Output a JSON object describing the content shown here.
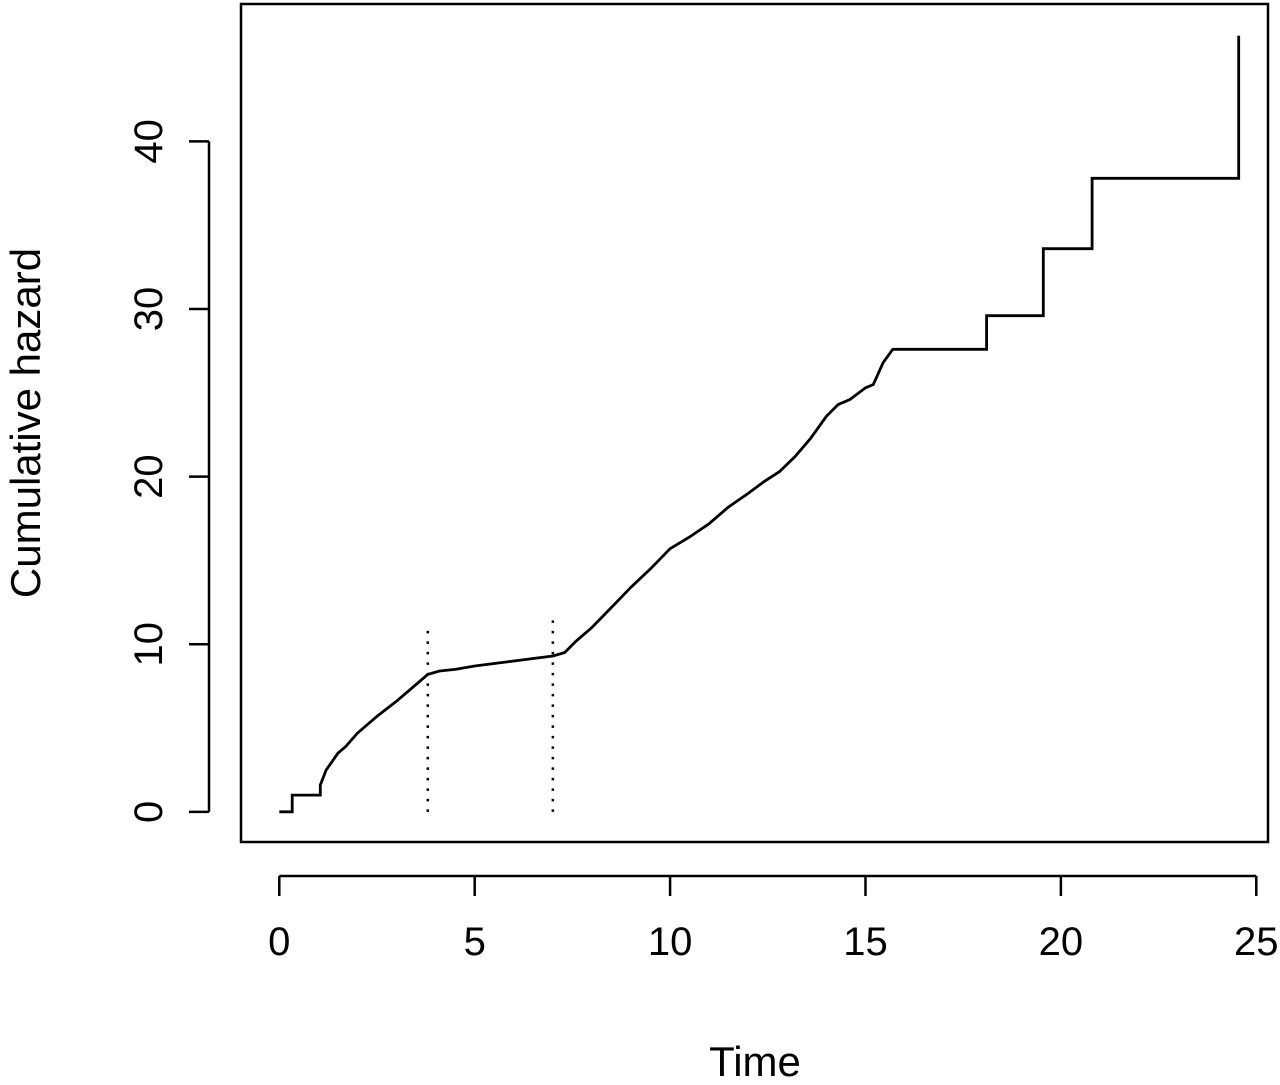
{
  "chart_data": {
    "type": "line",
    "step": true,
    "title": "",
    "xlabel": "Time",
    "ylabel": "Cumulative hazard",
    "xlim": [
      -0.98,
      25.3
    ],
    "ylim": [
      -1.8,
      48.2
    ],
    "x_ticks": [
      0,
      5,
      10,
      15,
      20,
      25
    ],
    "y_ticks": [
      0,
      10,
      20,
      30,
      40
    ],
    "grid": false,
    "legend": "none",
    "line_color": "#000000",
    "series": [
      {
        "x": [
          0,
          0.33,
          0.33,
          1.05,
          1.05,
          1.2,
          1.35,
          1.5,
          1.7,
          2.0,
          2.5,
          3.0,
          3.4,
          3.8,
          4.1,
          4.5,
          5.0,
          5.5,
          6.0,
          6.5,
          7.0,
          7.3,
          7.6,
          8.0,
          8.5,
          9.0,
          9.5,
          10.0,
          10.5,
          11.0,
          11.5,
          12.0,
          12.4,
          12.8,
          13.2,
          13.6,
          14.0,
          14.3,
          14.6,
          15.0,
          15.2,
          15.45,
          15.7,
          18.1,
          18.1,
          19.55,
          19.55,
          20.8,
          20.8,
          24.55,
          24.55
        ],
        "y": [
          0,
          0,
          1.0,
          1.0,
          1.6,
          2.5,
          3.0,
          3.5,
          3.9,
          4.7,
          5.7,
          6.6,
          7.4,
          8.2,
          8.4,
          8.5,
          8.7,
          8.85,
          9.0,
          9.15,
          9.3,
          9.5,
          10.2,
          11.0,
          12.2,
          13.4,
          14.5,
          15.7,
          16.4,
          17.2,
          18.2,
          19.0,
          19.7,
          20.3,
          21.2,
          22.3,
          23.6,
          24.3,
          24.6,
          25.3,
          25.5,
          26.8,
          27.6,
          27.6,
          29.6,
          29.6,
          33.6,
          33.6,
          37.8,
          37.8,
          46.3
        ]
      }
    ],
    "reference_lines": [
      {
        "orientation": "vertical",
        "x": 3.8,
        "y_from": 0,
        "y_to": 11.1,
        "style": "dotted"
      },
      {
        "orientation": "vertical",
        "x": 7.0,
        "y_from": 0,
        "y_to": 11.9,
        "style": "dotted"
      }
    ]
  }
}
